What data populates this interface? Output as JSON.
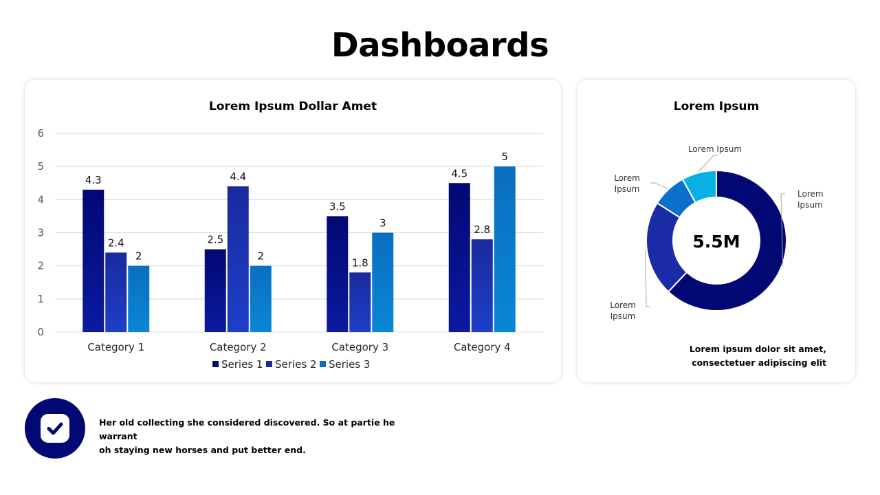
{
  "page": {
    "title": "Dashboards"
  },
  "colors": {
    "series1": "#020873",
    "series2": "#1a2a9e",
    "series3": "#0a6fc0",
    "donut1": "#020873",
    "donut2": "#1b2aa5",
    "donut3": "#0b6fcc",
    "donut4": "#08b0e3"
  },
  "chart_data": [
    {
      "type": "bar",
      "title": "Lorem Ipsum Dollar Amet",
      "xlabel": "",
      "ylabel": "",
      "categories": [
        "Category 1",
        "Category 2",
        "Category 3",
        "Category 4"
      ],
      "series": [
        {
          "name": "Series 1",
          "values": [
            4.3,
            2.5,
            3.5,
            4.5
          ]
        },
        {
          "name": "Series 2",
          "values": [
            2.4,
            4.4,
            1.8,
            2.8
          ]
        },
        {
          "name": "Series 3",
          "values": [
            2,
            2,
            3,
            5
          ]
        }
      ],
      "ylim": [
        0,
        6
      ],
      "yticks": [
        0,
        1,
        2,
        3,
        4,
        5,
        6
      ],
      "grid": true,
      "legend": "bottom",
      "data_labels": true
    },
    {
      "type": "pie",
      "variant": "donut",
      "title": "Lorem Ipsum",
      "center_label": "5.5M",
      "slices": [
        {
          "label": "Lorem Ipsum",
          "value": 62
        },
        {
          "label": "Lorem Ipsum",
          "value": 22
        },
        {
          "label": "Lorem Ipsum",
          "value": 8
        },
        {
          "label": "Lorem Ipsum",
          "value": 8
        }
      ],
      "caption_lines": [
        "Lorem ipsum dolor sit amet,",
        "consectetuer adipiscing elit"
      ]
    }
  ],
  "footer": {
    "lines": [
      "Her old collecting she considered discovered. So at partie he warrant",
      "oh staying new horses and put better end."
    ],
    "icon": "check-icon"
  }
}
